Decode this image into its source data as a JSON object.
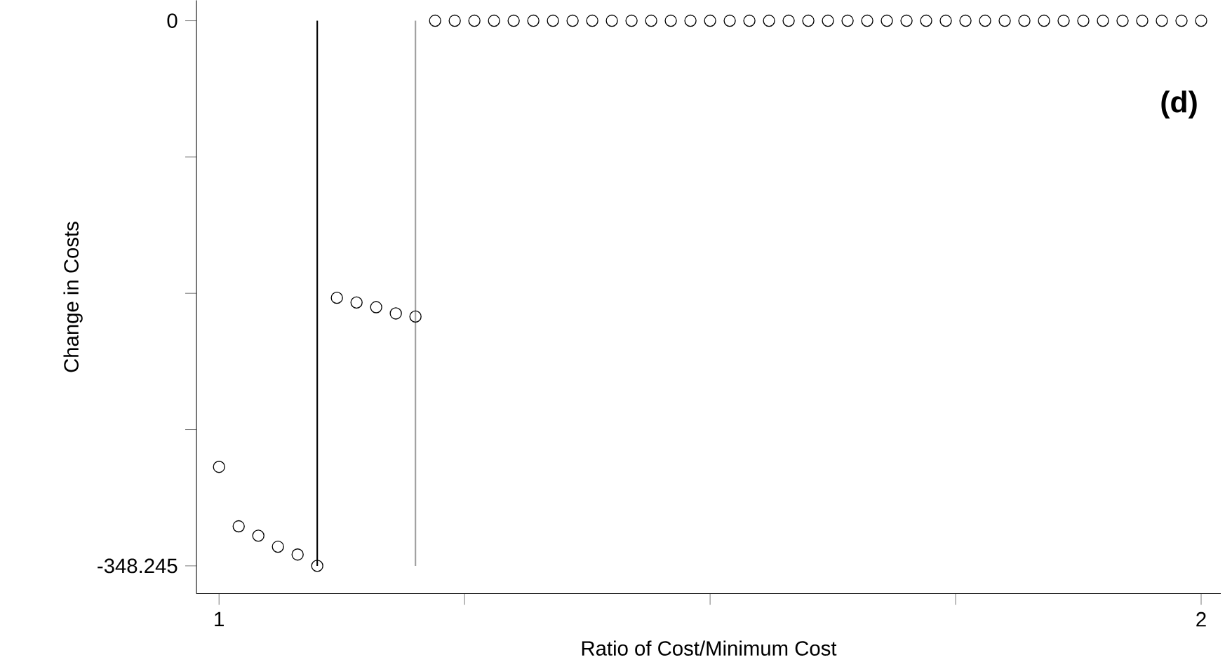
{
  "chart_data": {
    "type": "scatter",
    "xlabel": "Ratio of Cost/Minimum Cost",
    "ylabel": "Change in Costs",
    "annotations": [
      "(d)"
    ],
    "x": [
      1.0,
      1.02,
      1.04,
      1.06,
      1.08,
      1.1,
      1.12,
      1.14,
      1.16,
      1.18,
      1.2,
      1.22,
      1.24,
      1.26,
      1.28,
      1.3,
      1.32,
      1.34,
      1.36,
      1.38,
      1.4,
      1.42,
      1.44,
      1.46,
      1.48,
      1.5,
      1.52,
      1.54,
      1.56,
      1.58,
      1.6,
      1.62,
      1.64,
      1.66,
      1.68,
      1.7,
      1.72,
      1.74,
      1.76,
      1.78,
      1.8,
      1.82,
      1.84,
      1.86,
      1.88,
      1.9,
      1.92,
      1.94,
      1.96,
      1.98,
      2.0
    ],
    "values": [
      -285,
      -323,
      -329,
      -336,
      -341,
      -348.245,
      -177,
      -180,
      -183,
      -187,
      -189,
      0,
      0,
      0,
      0,
      0,
      0,
      0,
      0,
      0,
      0,
      0,
      0,
      0,
      0,
      0,
      0,
      0,
      0,
      0,
      0,
      0,
      0,
      0,
      0,
      0,
      0,
      0,
      0,
      0,
      0,
      0,
      0,
      0,
      0,
      0,
      0,
      0,
      0,
      0,
      0
    ],
    "color": "#000000",
    "marker": "circle",
    "xlim": [
      0.977,
      2.02
    ],
    "ylim": [
      -366,
      13
    ],
    "xticks": [
      1,
      {
        "value": 1.25,
        "label": null
      },
      {
        "value": 1.5,
        "label": null
      },
      {
        "value": 1.75,
        "label": null
      },
      2
    ],
    "yticks": [
      {
        "value": -348.245,
        "label": "-348.245"
      },
      {
        "value": -261.18,
        "label": null
      },
      {
        "value": -174.12,
        "label": null
      },
      {
        "value": -87.06,
        "label": null
      },
      0
    ],
    "ref_lines": [
      {
        "axis": "x",
        "value": 1.1,
        "color": "#000000"
      },
      {
        "axis": "x",
        "value": 1.2,
        "color": "#a0a0a0"
      }
    ],
    "line_style": "none"
  }
}
